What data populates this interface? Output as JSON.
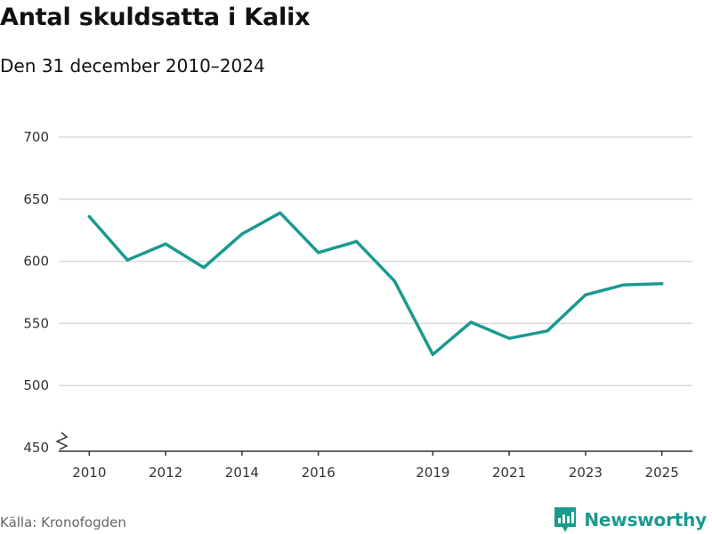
{
  "title": "Antal skuldsatta i Kalix",
  "subtitle": "Den 31 december 2010–2024",
  "source": "Källa: Kronofogden",
  "brand": {
    "name": "Newsworthy",
    "icon": "newsworthy-logo-icon",
    "color": "#1a9a8f"
  },
  "chart_data": {
    "type": "line",
    "title": "Antal skuldsatta i Kalix",
    "subtitle": "Den 31 december 2010–2024",
    "xlabel": "",
    "ylabel": "",
    "x": [
      2010,
      2011,
      2012,
      2013,
      2014,
      2015,
      2016,
      2017,
      2018,
      2019,
      2020,
      2021,
      2022,
      2023,
      2024,
      2025
    ],
    "series": [
      {
        "name": "Antal skuldsatta",
        "color": "#1a9a8f",
        "values": [
          636,
          601,
          614,
          595,
          622,
          639,
          607,
          616,
          584,
          525,
          551,
          538,
          544,
          573,
          581,
          582
        ]
      }
    ],
    "xticks": [
      2010,
      2012,
      2014,
      2016,
      2019,
      2021,
      2023,
      2025
    ],
    "xtick_labels": [
      "2010",
      "2012",
      "2014",
      "2016",
      "2019",
      "2021",
      "2023",
      "2025"
    ],
    "yticks": [
      450,
      500,
      550,
      600,
      650,
      700
    ],
    "ytick_labels": [
      "450",
      "500",
      "550",
      "600",
      "650",
      "700"
    ],
    "xlim": [
      2009.2,
      2025.8
    ],
    "ylim": [
      450,
      700
    ],
    "grid": true,
    "axis_break": true
  }
}
